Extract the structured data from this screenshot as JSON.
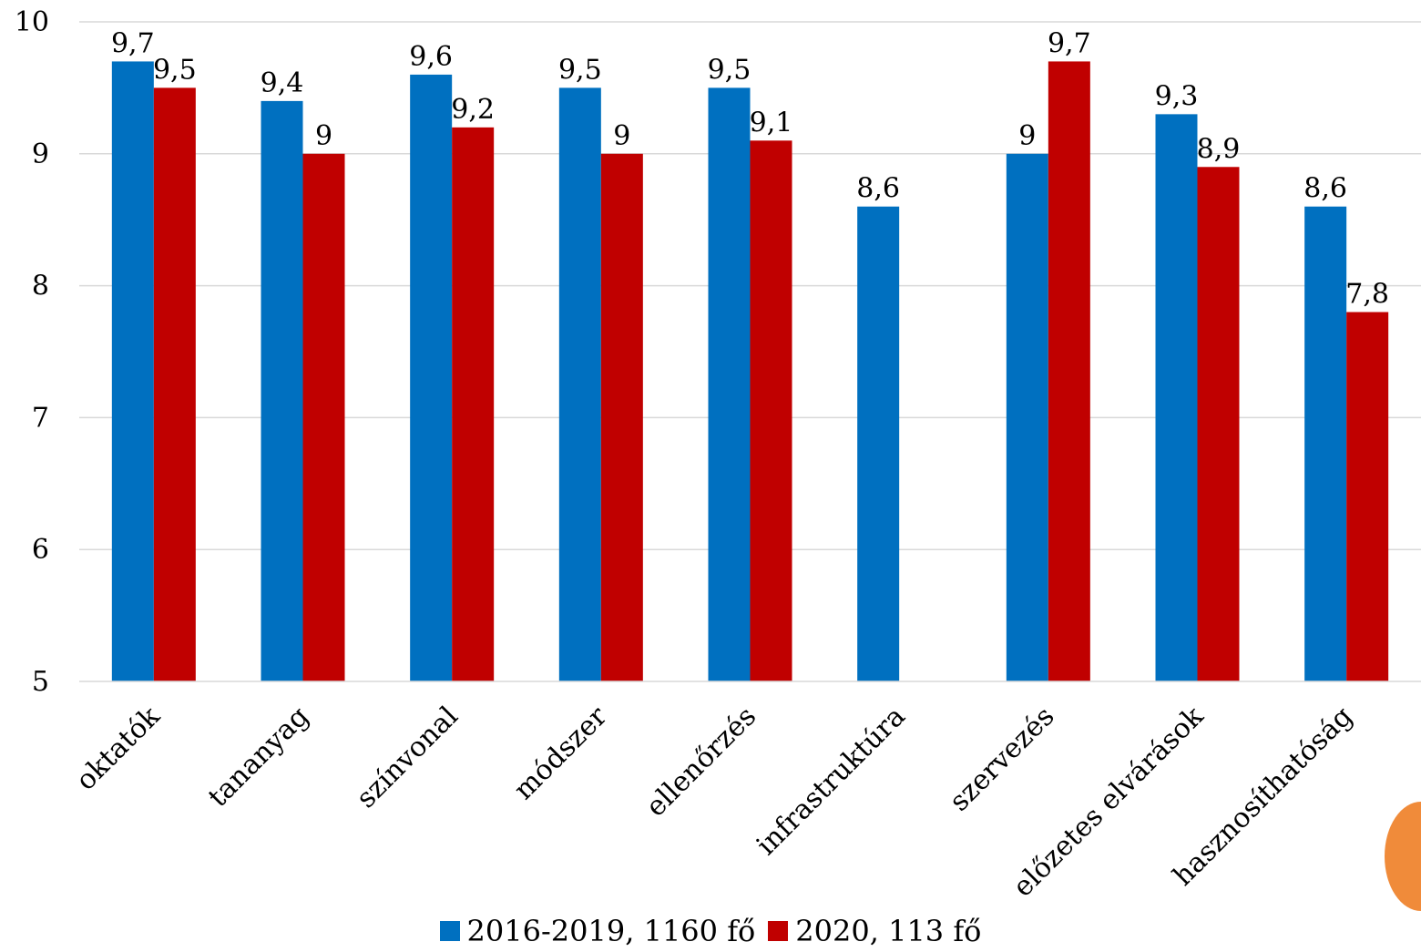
{
  "chart_data": {
    "type": "bar",
    "categories": [
      "oktatók",
      "tananyag",
      "színvonal",
      "módszer",
      "ellenőrzés",
      "infrastruktúra",
      "szervezés",
      "előzetes elvárások",
      "hasznosíthatóság"
    ],
    "series": [
      {
        "name": "2016-2019, 1160 fő",
        "color": "#0070c0",
        "values": [
          9.7,
          9.4,
          9.6,
          9.5,
          9.5,
          8.6,
          9.0,
          9.3,
          8.6
        ],
        "labels": [
          "9,7",
          "9,4",
          "9,6",
          "9,5",
          "9,5",
          "8,6",
          "9",
          "9,3",
          "8,6"
        ]
      },
      {
        "name": "2020, 113 fő",
        "color": "#c00000",
        "values": [
          9.5,
          9.0,
          9.2,
          9.0,
          9.1,
          null,
          9.7,
          8.9,
          7.8
        ],
        "labels": [
          "9,5",
          "9",
          "9,2",
          "9",
          "9,1",
          "",
          "9,7",
          "8,9",
          "7,8"
        ]
      }
    ],
    "ylim": [
      5,
      10
    ],
    "yticks": [
      "5",
      "6",
      "7",
      "8",
      "9",
      "10"
    ],
    "grid": true,
    "legend_position": "bottom"
  }
}
